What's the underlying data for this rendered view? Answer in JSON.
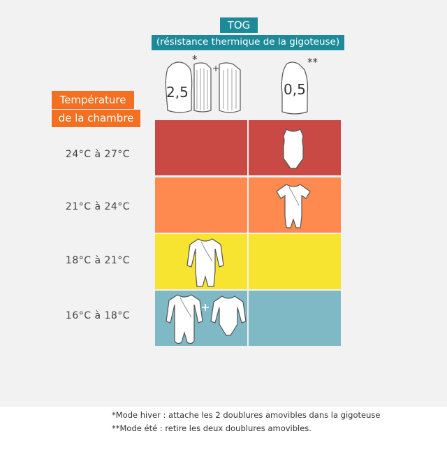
{
  "header": {
    "tog_title": "TOG",
    "tog_subtitle": "(résistance thermique de la gigoteuse)",
    "temp_line1": "Température",
    "temp_line2": "de la chambre"
  },
  "columns": [
    {
      "tog": "2,5",
      "marker": "*"
    },
    {
      "tog": "0,5",
      "marker": "**"
    }
  ],
  "rows": [
    {
      "label": "24°C à 27°C",
      "color": "#c94a44",
      "left_item": "",
      "right_item": "sleeveless-bodysuit-icon"
    },
    {
      "label": "21°C à 24°C",
      "color": "#ff8a50",
      "left_item": "",
      "right_item": "short-romper-icon"
    },
    {
      "label": "18°C à 21°C",
      "color": "#f6e431",
      "left_item": "long-romper-icon",
      "right_item": ""
    },
    {
      "label": "16°C à 18°C",
      "color": "#7fb9c5",
      "left_item": "footed-pajama-plus-long-sleeve-bodysuit-icon",
      "right_item": ""
    }
  ],
  "footnotes": [
    "*Mode hiver : attache les 2 doublures amovibles dans la gigoteuse",
    "**Mode été : retire les deux doublures amovibles."
  ]
}
